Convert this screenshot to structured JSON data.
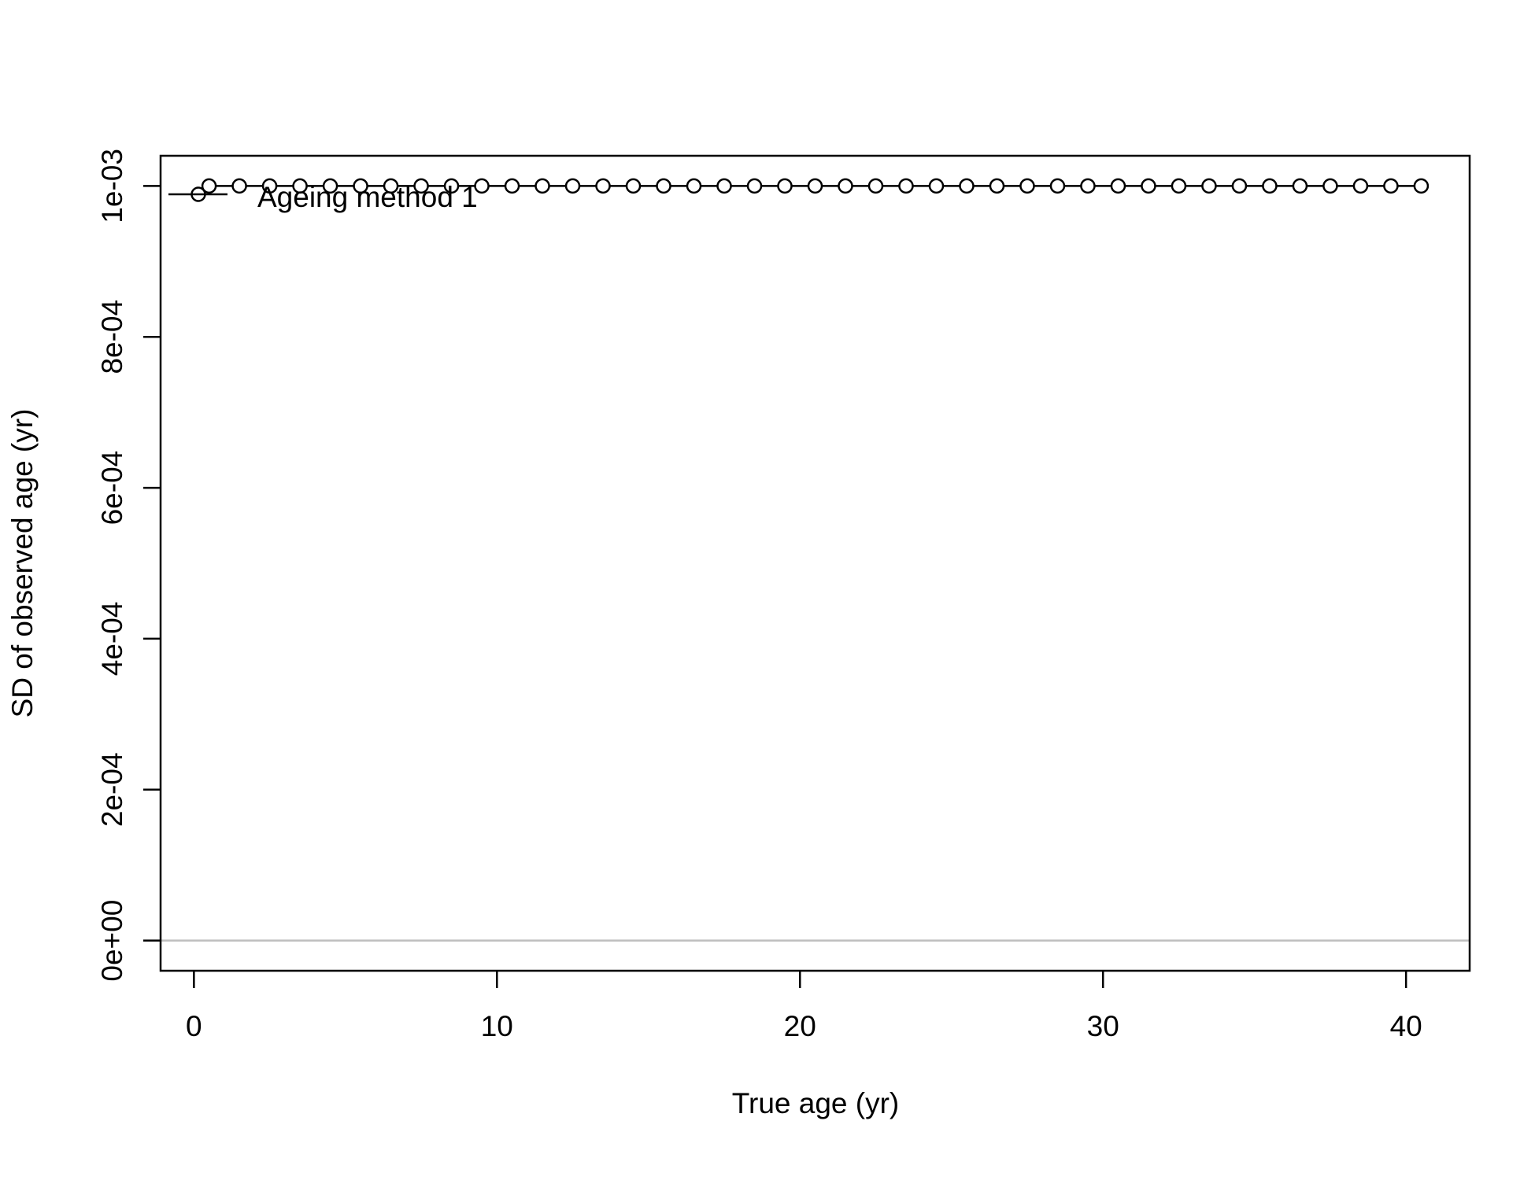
{
  "chart_data": {
    "type": "line",
    "xlabel": "True age (yr)",
    "ylabel": "SD of observed age (yr)",
    "x": [
      0.5,
      1.5,
      2.5,
      3.5,
      4.5,
      5.5,
      6.5,
      7.5,
      8.5,
      9.5,
      10.5,
      11.5,
      12.5,
      13.5,
      14.5,
      15.5,
      16.5,
      17.5,
      18.5,
      19.5,
      20.5,
      21.5,
      22.5,
      23.5,
      24.5,
      25.5,
      26.5,
      27.5,
      28.5,
      29.5,
      30.5,
      31.5,
      32.5,
      33.5,
      34.5,
      35.5,
      36.5,
      37.5,
      38.5,
      39.5,
      40.5
    ],
    "series": [
      {
        "name": "Ageing method 1",
        "color": "#000000",
        "values": [
          0.001,
          0.001,
          0.001,
          0.001,
          0.001,
          0.001,
          0.001,
          0.001,
          0.001,
          0.001,
          0.001,
          0.001,
          0.001,
          0.001,
          0.001,
          0.001,
          0.001,
          0.001,
          0.001,
          0.001,
          0.001,
          0.001,
          0.001,
          0.001,
          0.001,
          0.001,
          0.001,
          0.001,
          0.001,
          0.001,
          0.001,
          0.001,
          0.001,
          0.001,
          0.001,
          0.001,
          0.001,
          0.001,
          0.001,
          0.001,
          0.001
        ]
      }
    ],
    "xlim": [
      -1.1,
      42.1
    ],
    "xticks": [
      0,
      10,
      20,
      30,
      40
    ],
    "ylim": [
      -4e-05,
      0.00104
    ],
    "yticks": [
      {
        "value": 0,
        "label": "0e+00"
      },
      {
        "value": 0.0002,
        "label": "2e-04"
      },
      {
        "value": 0.0004,
        "label": "4e-04"
      },
      {
        "value": 0.0006,
        "label": "6e-04"
      },
      {
        "value": 0.0008,
        "label": "8e-04"
      },
      {
        "value": 0.001,
        "label": "1e-03"
      }
    ],
    "hlines": [
      0
    ],
    "hline_color": "#bebebe",
    "markers": "open-circle",
    "legend": "top-left",
    "grid": false
  }
}
